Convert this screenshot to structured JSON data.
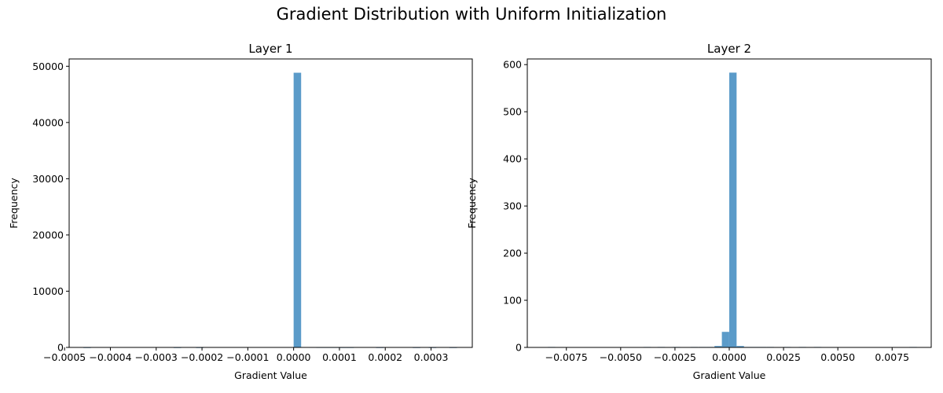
{
  "figure": {
    "title": "Gradient Distribution with Uniform Initialization"
  },
  "chart_data": [
    {
      "type": "bar",
      "title": "Layer 1",
      "xlabel": "Gradient Value",
      "ylabel": "Frequency",
      "xlim": [
        -0.00049,
        0.00039
      ],
      "ylim": [
        0,
        51300
      ],
      "xticks": [
        -0.0005,
        -0.0004,
        -0.0003,
        -0.0002,
        -0.0001,
        0.0,
        0.0001,
        0.0002,
        0.0003
      ],
      "xtick_labels": [
        "−0.0005",
        "−0.0004",
        "−0.0003",
        "−0.0002",
        "−0.0001",
        "0.0000",
        "0.0001",
        "0.0002",
        "0.0003"
      ],
      "yticks": [
        0,
        10000,
        20000,
        30000,
        40000,
        50000
      ],
      "ytick_labels": [
        "0",
        "10000",
        "20000",
        "30000",
        "40000",
        "50000"
      ],
      "bin_width": 1.64e-05,
      "bins": [
        {
          "x": -0.000459,
          "count": 8
        },
        {
          "x": -0.000262,
          "count": 8
        },
        {
          "x": -0.000213,
          "count": 8
        },
        {
          "x": -1.6e-05,
          "count": 60
        },
        {
          "x": 0.0,
          "count": 48850
        },
        {
          "x": 1.64e-05,
          "count": 70
        },
        {
          "x": 3.28e-05,
          "count": 40
        },
        {
          "x": 4.92e-05,
          "count": 30
        },
        {
          "x": 6.56e-05,
          "count": 30
        },
        {
          "x": 8.2e-05,
          "count": 30
        },
        {
          "x": 9.84e-05,
          "count": 20
        },
        {
          "x": 0.000115,
          "count": 20
        },
        {
          "x": 0.00018,
          "count": 10
        },
        {
          "x": 0.00026,
          "count": 10
        },
        {
          "x": 0.000295,
          "count": 10
        },
        {
          "x": 0.00034,
          "count": 10
        }
      ],
      "bar_color": "#5b9bc9",
      "grid": false
    },
    {
      "type": "bar",
      "title": "Layer 2",
      "xlabel": "Gradient Value",
      "ylabel": "Frequency",
      "xlim": [
        -0.0093,
        0.0093
      ],
      "ylim": [
        0,
        612
      ],
      "xticks": [
        -0.0075,
        -0.005,
        -0.0025,
        0.0,
        0.0025,
        0.005,
        0.0075
      ],
      "xtick_labels": [
        "−0.0075",
        "−0.0050",
        "−0.0025",
        "0.0000",
        "0.0025",
        "0.0050",
        "0.0075"
      ],
      "yticks": [
        0,
        100,
        200,
        300,
        400,
        500,
        600
      ],
      "ytick_labels": [
        "0",
        "100",
        "200",
        "300",
        "400",
        "500",
        "600"
      ],
      "bin_width": 0.000338,
      "bins": [
        {
          "x": -0.00835,
          "count": 1
        },
        {
          "x": -0.00395,
          "count": 1
        },
        {
          "x": -0.0033,
          "count": 1
        },
        {
          "x": -0.0026,
          "count": 1
        },
        {
          "x": -0.00178,
          "count": 1
        },
        {
          "x": -0.0014,
          "count": 1
        },
        {
          "x": -0.00105,
          "count": 1
        },
        {
          "x": -0.00068,
          "count": 3
        },
        {
          "x": -0.00034,
          "count": 33
        },
        {
          "x": 0.0,
          "count": 583
        },
        {
          "x": 0.00034,
          "count": 3
        },
        {
          "x": 0.00068,
          "count": 1
        },
        {
          "x": 0.00102,
          "count": 1
        },
        {
          "x": 0.00136,
          "count": 1
        },
        {
          "x": 0.00172,
          "count": 1
        },
        {
          "x": 0.0025,
          "count": 1
        },
        {
          "x": 0.0032,
          "count": 1
        },
        {
          "x": 0.0039,
          "count": 1
        },
        {
          "x": 0.0083,
          "count": 1
        }
      ],
      "bar_color": "#5b9bc9",
      "grid": false
    }
  ]
}
